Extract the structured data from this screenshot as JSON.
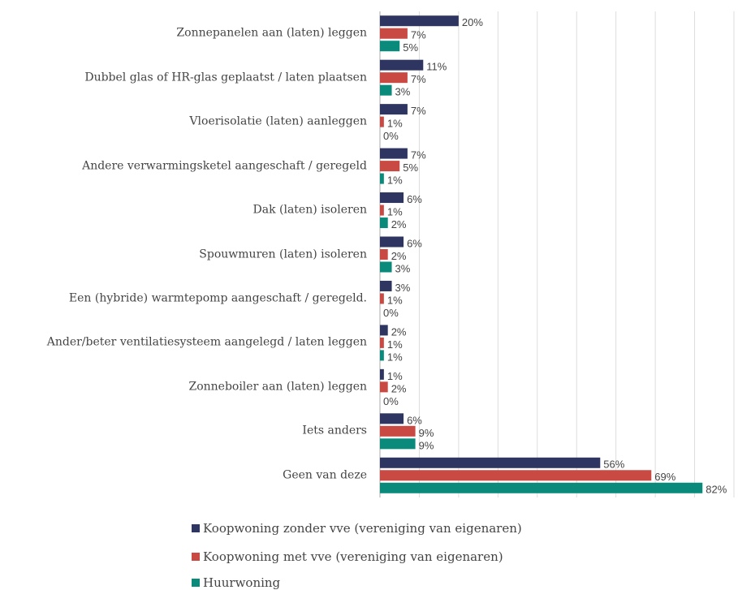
{
  "chart_data": {
    "type": "hbar",
    "categories": [
      "Zonnepanelen aan (laten) leggen",
      "Dubbel glas of HR-glas geplaatst / laten plaatsen",
      "Vloerisolatie (laten) aanleggen",
      "Andere verwarmingsketel aangeschaft / geregeld",
      "Dak (laten) isoleren",
      "Spouwmuren (laten) isoleren",
      "Een (hybride) warmtepomp aangeschaft / geregeld.",
      "Ander/beter ventilatiesysteem aangelegd / laten leggen",
      "Zonneboiler aan (laten) leggen",
      "Iets anders",
      "Geen van deze"
    ],
    "series": [
      {
        "name": "Koopwoning zonder vve (vereniging van eigenaren)",
        "color": "#2e3560",
        "values": [
          20,
          11,
          7,
          7,
          6,
          6,
          3,
          2,
          1,
          6,
          56
        ],
        "value_labels": [
          "20%",
          "11%",
          "7%",
          "7%",
          "6%",
          "6%",
          "3%",
          "2%",
          "1%",
          "6%",
          "56%"
        ]
      },
      {
        "name": "Koopwoning met vve (vereniging van eigenaren)",
        "color": "#c94a43",
        "values": [
          7,
          7,
          1,
          5,
          1,
          2,
          1,
          1,
          2,
          9,
          69
        ],
        "value_labels": [
          "7%",
          "7%",
          "1%",
          "5%",
          "1%",
          "2%",
          "1%",
          "1%",
          "2%",
          "9%",
          "69%"
        ]
      },
      {
        "name": "Huurwoning",
        "color": "#0a8a7a",
        "values": [
          5,
          3,
          0,
          1,
          2,
          3,
          0,
          1,
          0,
          9,
          82
        ],
        "value_labels": [
          "5%",
          "3%",
          "0%",
          "1%",
          "2%",
          "3%",
          "0%",
          "1%",
          "0%",
          "9%",
          "82%"
        ]
      }
    ],
    "xlim": [
      0,
      90
    ],
    "xticks": [
      0,
      10,
      20,
      30,
      40,
      50,
      60,
      70,
      80,
      90
    ],
    "grid": true,
    "tick_labels": false,
    "legend": "bottom"
  }
}
